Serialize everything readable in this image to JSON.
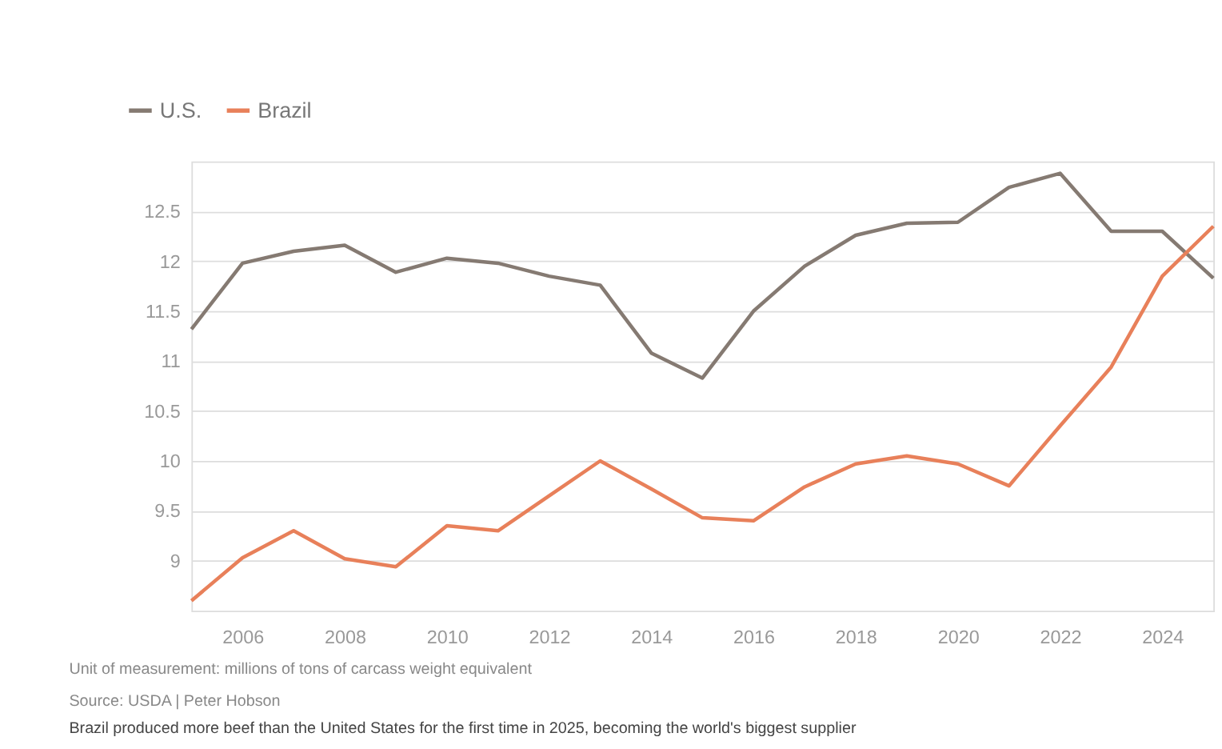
{
  "chart_data": {
    "type": "line",
    "x": [
      2005,
      2006,
      2007,
      2008,
      2009,
      2010,
      2011,
      2012,
      2013,
      2014,
      2015,
      2016,
      2017,
      2018,
      2019,
      2020,
      2021,
      2022,
      2023,
      2024,
      2025
    ],
    "series": [
      {
        "name": "U.S.",
        "color": "#857a72",
        "values": [
          11.32,
          11.98,
          12.1,
          12.16,
          11.89,
          12.03,
          11.98,
          11.85,
          11.76,
          11.08,
          10.83,
          11.5,
          11.95,
          12.26,
          12.38,
          12.39,
          12.74,
          12.88,
          12.3,
          12.3,
          11.83
        ]
      },
      {
        "name": "Brazil",
        "color": "#e8805a",
        "values": [
          8.6,
          9.03,
          9.3,
          9.02,
          8.94,
          9.35,
          9.3,
          9.65,
          10.0,
          9.72,
          9.43,
          9.4,
          9.74,
          9.97,
          10.05,
          9.97,
          9.75,
          10.35,
          10.94,
          11.85,
          12.35
        ]
      }
    ],
    "xlim": [
      2005,
      2025
    ],
    "xticks": [
      2006,
      2008,
      2010,
      2012,
      2014,
      2016,
      2018,
      2020,
      2022,
      2024
    ],
    "ylim": [
      8.5,
      13
    ],
    "yticks": [
      9,
      9.5,
      10,
      10.5,
      11,
      11.5,
      12,
      12.5
    ],
    "grid": "y",
    "legend": "top left",
    "marker": "none",
    "line_style": "solid",
    "annotations": [
      "Unit of measurement: millions of tons of carcass weight equivalent",
      "Source: USDA | Peter Hobson",
      "Brazil produced more beef than the United States for the first time in 2025, becoming the world's biggest supplier"
    ]
  }
}
